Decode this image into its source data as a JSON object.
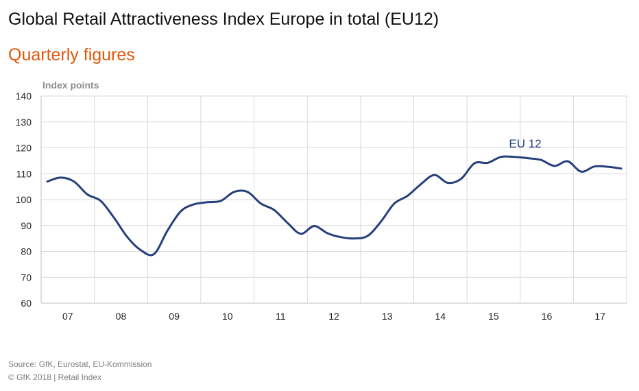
{
  "title": "Global Retail Attractiveness Index Europe in total (EU12)",
  "subtitle": "Quarterly figures",
  "source": "Source: GfK, Eurostat, EU-Kommission",
  "copyright": "© GfK 2018 | Retail Index",
  "colors": {
    "subtitle": "#e2570c",
    "line": "#243f7c",
    "grid": "#d9d9d9",
    "axis": "#bfbfbf"
  },
  "chart_data": {
    "type": "line",
    "title": "Global Retail Attractiveness Index Europe in total (EU12)",
    "subtitle": "Quarterly figures",
    "ylabel": "Index points",
    "xlabel": "",
    "ylim": [
      60,
      140
    ],
    "yticks": [
      60,
      70,
      80,
      90,
      100,
      110,
      120,
      130,
      140
    ],
    "categories": [
      "07",
      "08",
      "09",
      "10",
      "11",
      "12",
      "13",
      "14",
      "15",
      "16",
      "17"
    ],
    "grid": true,
    "series": [
      {
        "name": "EU 12",
        "label_position": "above line near 2015-2016",
        "x": [
          "2007 Q1",
          "2007 Q2",
          "2007 Q3",
          "2007 Q4",
          "2008 Q1",
          "2008 Q2",
          "2008 Q3",
          "2008 Q4",
          "2009 Q1",
          "2009 Q2",
          "2009 Q3",
          "2009 Q4",
          "2010 Q1",
          "2010 Q2",
          "2010 Q3",
          "2010 Q4",
          "2011 Q1",
          "2011 Q2",
          "2011 Q3",
          "2011 Q4",
          "2012 Q1",
          "2012 Q2",
          "2012 Q3",
          "2012 Q4",
          "2013 Q1",
          "2013 Q2",
          "2013 Q3",
          "2013 Q4",
          "2014 Q1",
          "2014 Q2",
          "2014 Q3",
          "2014 Q4",
          "2015 Q1",
          "2015 Q2",
          "2015 Q3",
          "2015 Q4",
          "2016 Q1",
          "2016 Q2",
          "2016 Q3",
          "2016 Q4",
          "2017 Q1",
          "2017 Q2",
          "2017 Q3",
          "2017 Q4"
        ],
        "values": [
          107,
          108.5,
          107,
          102,
          99.5,
          93,
          85.5,
          80.5,
          79,
          88,
          95.5,
          98.2,
          99,
          99.5,
          103,
          103,
          98.5,
          96,
          91,
          86.8,
          89.8,
          87,
          85.5,
          85,
          86,
          91.5,
          98.5,
          101.5,
          106,
          109.5,
          106.5,
          108,
          114,
          114.2,
          116.5,
          116.5,
          116,
          115.3,
          113,
          114.8,
          110.8,
          112.8,
          112.7,
          112
        ]
      }
    ]
  }
}
